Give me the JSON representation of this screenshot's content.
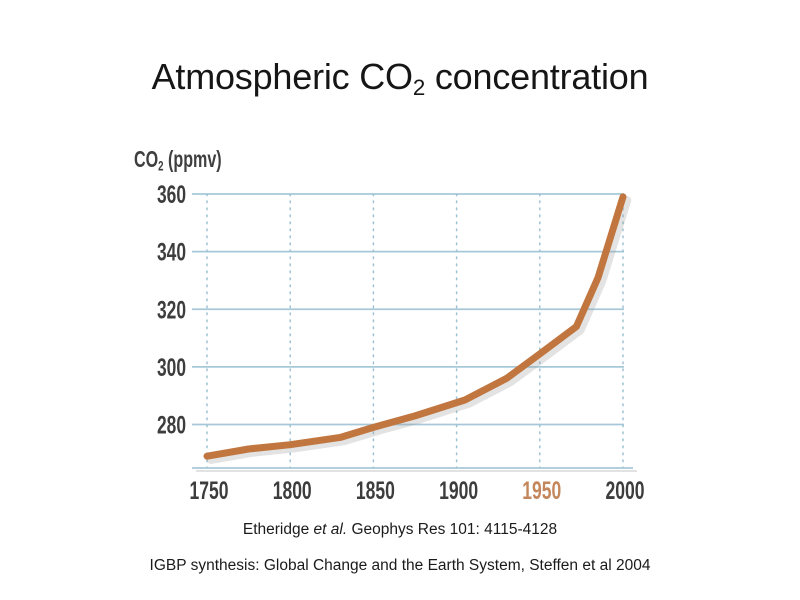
{
  "slide": {
    "title": {
      "prefix": "Atmospheric CO",
      "sub": "2",
      "suffix": " concentration"
    }
  },
  "citations": {
    "primary": {
      "pre": "Etheridge ",
      "italic": "et al.",
      "post": " Geophys Res 101: 4115-4128"
    },
    "secondary": "IGBP synthesis: Global Change and the Earth System, Steffen et al 2004"
  },
  "chart_data": {
    "type": "line",
    "title": "Atmospheric CO2 concentration",
    "xlabel": "",
    "ylabel": "CO2 (ppmv)",
    "ylabel_parts": {
      "prefix": "CO",
      "sub": "2",
      "suffix": " (ppmv)"
    },
    "x": [
      1750,
      1775,
      1800,
      1830,
      1850,
      1875,
      1905,
      1930,
      1950,
      1972,
      1985,
      2000
    ],
    "series": [
      {
        "name": "Atmospheric CO2 concentration (ppmv)",
        "values": [
          269,
          271.5,
          273,
          275.5,
          279,
          283,
          288.5,
          296,
          304.5,
          314,
          331,
          359
        ]
      }
    ],
    "xticks": [
      "1750",
      "1800",
      "1850",
      "1900",
      "1950",
      "2000"
    ],
    "highlighted_xtick": "1950",
    "yticks": [
      360,
      340,
      320,
      300,
      280
    ],
    "xlim": [
      1750,
      2000
    ],
    "ylim": [
      265,
      360
    ],
    "grid": {
      "horizontal": "solid",
      "vertical": "dotted"
    },
    "legend": "none",
    "colors": {
      "line": "#c1763f",
      "grid": "#a6c8d8",
      "grid_dots": "#9dc2d3",
      "tick_text": "#3d3d3d",
      "highlight_tick": "#c4875c",
      "shadow": "#9a9a9a",
      "title_text": "#161616",
      "background": "#ffffff"
    }
  }
}
